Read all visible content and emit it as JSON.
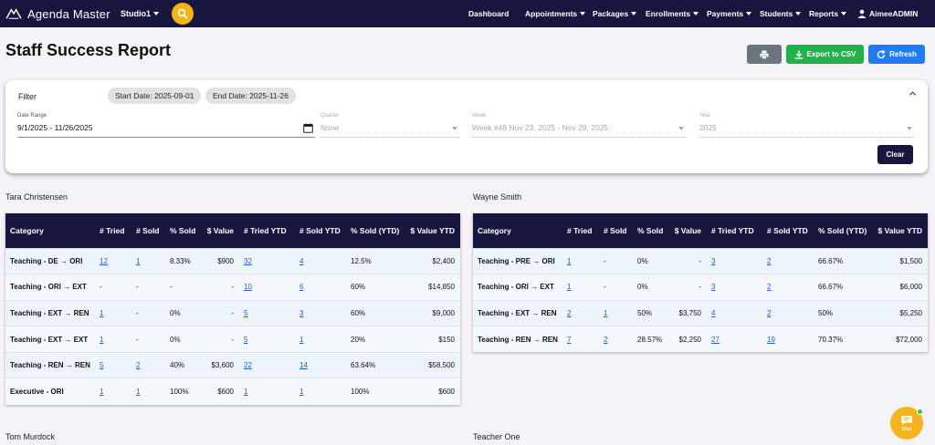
{
  "nav": {
    "brand": "Agenda Master",
    "studio": "Studio1",
    "items": [
      "Dashboard",
      "Appointments",
      "Packages",
      "Enrollments",
      "Payments",
      "Students",
      "Reports"
    ],
    "user": "AimeeADMIN"
  },
  "header": {
    "title": "Staff Success Report",
    "export_label": "Export to CSV",
    "refresh_label": "Refresh"
  },
  "filter": {
    "title": "Filter",
    "chip_start": "Start Date: 2025-09-01",
    "chip_end": "End Date: 2025-11-26",
    "date_range_label": "Date Range",
    "date_range_value": "9/1/2025 - 11/26/2025",
    "quarter_label": "Quarter",
    "quarter_value": "None",
    "week_label": "Week",
    "week_value": "Week #48 Nov 23, 2025 - Nov 29, 2025",
    "year_label": "Year",
    "year_value": "2025",
    "clear_label": "Clear"
  },
  "columns": [
    "Category",
    "# Tried",
    "# Sold",
    "% Sold",
    "$ Value",
    "# Tried YTD",
    "# Sold YTD",
    "% Sold (YTD)",
    "$ Value YTD"
  ],
  "staff": [
    {
      "name": "Tara Christensen",
      "rows": [
        [
          "Teaching - DE → ORI",
          "12",
          "1",
          "8.33%",
          "$900",
          "32",
          "4",
          "12.5%",
          "$2,400"
        ],
        [
          "Teaching - ORI → EXT",
          "-",
          "-",
          "-",
          "-",
          "10",
          "6",
          "60%",
          "$14,850"
        ],
        [
          "Teaching - EXT → REN",
          "1",
          "-",
          "0%",
          "-",
          "5",
          "3",
          "60%",
          "$9,000"
        ],
        [
          "Teaching - EXT → EXT",
          "1",
          "-",
          "0%",
          "-",
          "5",
          "1",
          "20%",
          "$150"
        ],
        [
          "Teaching - REN → REN",
          "5",
          "2",
          "40%",
          "$3,600",
          "22",
          "14",
          "63.64%",
          "$58,500"
        ],
        [
          "Executive - ORI",
          "1",
          "1",
          "100%",
          "$600",
          "1",
          "1",
          "100%",
          "$600"
        ]
      ]
    },
    {
      "name": "Wayne Smith",
      "rows": [
        [
          "Teaching - PRE → ORI",
          "1",
          "-",
          "0%",
          "-",
          "3",
          "2",
          "66.67%",
          "$1,500"
        ],
        [
          "Teaching - ORI → EXT",
          "1",
          "-",
          "0%",
          "-",
          "3",
          "2",
          "66.67%",
          "$6,000"
        ],
        [
          "Teaching - EXT → REN",
          "2",
          "1",
          "50%",
          "$3,750",
          "4",
          "2",
          "50%",
          "$5,250"
        ],
        [
          "Teaching - REN → REN",
          "7",
          "2",
          "28.57%",
          "$2,250",
          "27",
          "19",
          "70.37%",
          "$72,000"
        ]
      ]
    }
  ],
  "more_staff": [
    "Tom Murdock",
    "Teacher One"
  ],
  "chat_label": "Chat",
  "colors": {
    "nav": "#17163f",
    "accent": "#f4b41a",
    "csv": "#22b14c",
    "refresh": "#1f7cf2",
    "print": "#6c757d",
    "link": "#1a5fc7"
  }
}
